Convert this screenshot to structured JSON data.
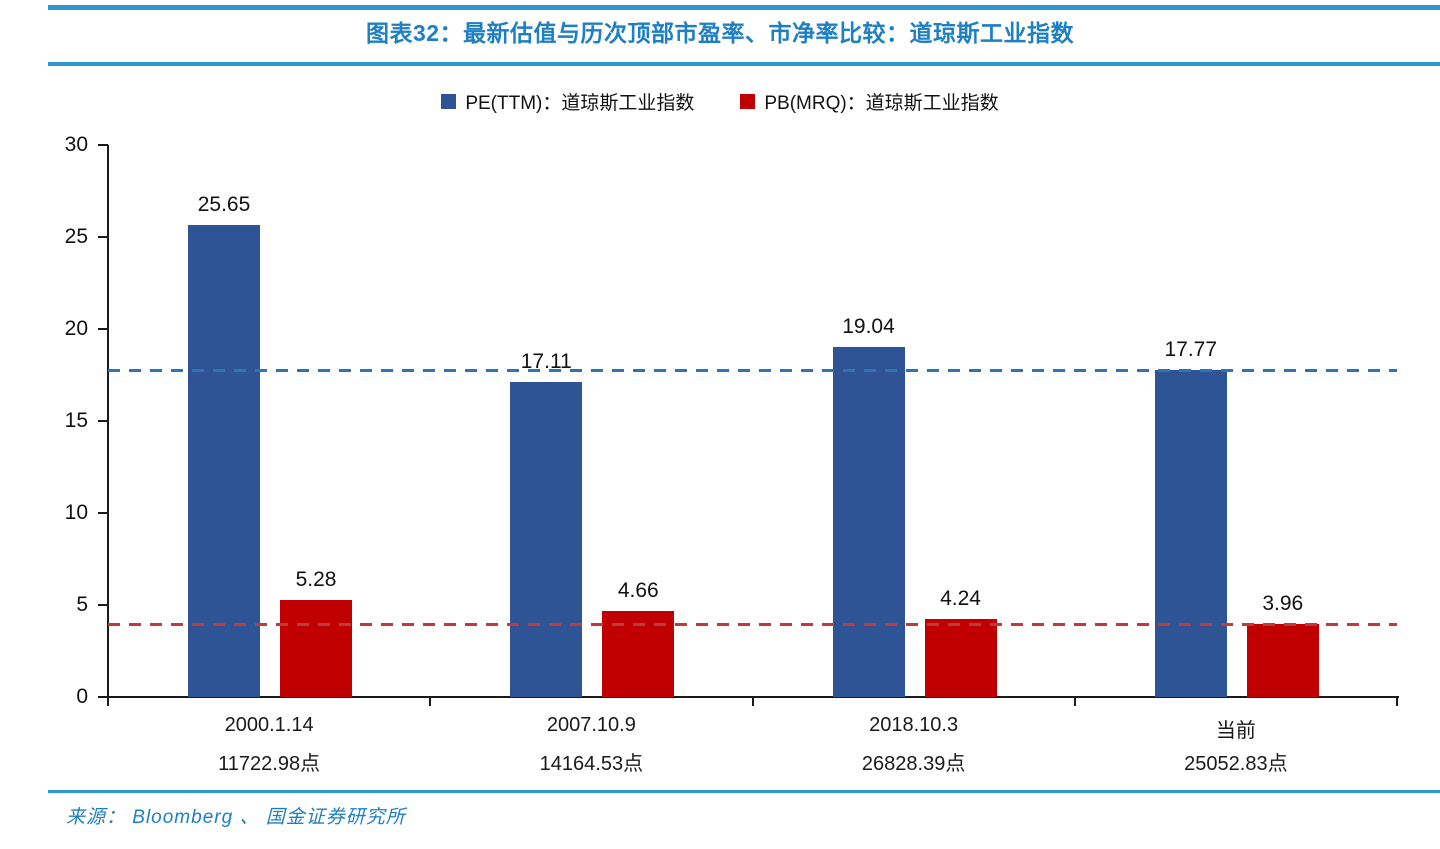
{
  "header": {
    "title": "图表32：最新估值与历次顶部市盈率、市净率比较：道琼斯工业指数",
    "accent_color": "#1E7FC3",
    "rule_color": "#2B97D3"
  },
  "legend": {
    "items": [
      {
        "label": "PE(TTM)：道琼斯工业指数",
        "color": "#2F5496"
      },
      {
        "label": "PB(MRQ)：道琼斯工业指数",
        "color": "#C00000"
      }
    ]
  },
  "chart_data": {
    "type": "bar",
    "title": "图表32：最新估值与历次顶部市盈率、市净率比较：道琼斯工业指数",
    "categories": [
      "2000.1.14",
      "2007.10.9",
      "2018.10.3",
      "当前"
    ],
    "category_sublabels": [
      "11722.98点",
      "14164.53点",
      "26828.39点",
      "25052.83点"
    ],
    "series": [
      {
        "name": "PE(TTM)：道琼斯工业指数",
        "color": "#2F5496",
        "values": [
          25.65,
          17.11,
          19.04,
          17.77
        ]
      },
      {
        "name": "PB(MRQ)：道琼斯工业指数",
        "color": "#C00000",
        "values": [
          5.28,
          4.66,
          4.24,
          3.96
        ]
      }
    ],
    "reference_lines": [
      {
        "value": 17.77,
        "color": "#2E75B6",
        "style": "dashed"
      },
      {
        "value": 3.96,
        "color": "#C0393B",
        "style": "dashed"
      }
    ],
    "ylim": [
      0,
      30
    ],
    "yticks": [
      0,
      5,
      10,
      15,
      20,
      25,
      30
    ],
    "xlabel": "",
    "ylabel": "",
    "grid": false,
    "legend_position": "top",
    "axis_color": "#1a1a1a",
    "bar_label_decimals": 2
  },
  "footer": {
    "source": "来源： Bloomberg 、 国金证券研究所"
  }
}
